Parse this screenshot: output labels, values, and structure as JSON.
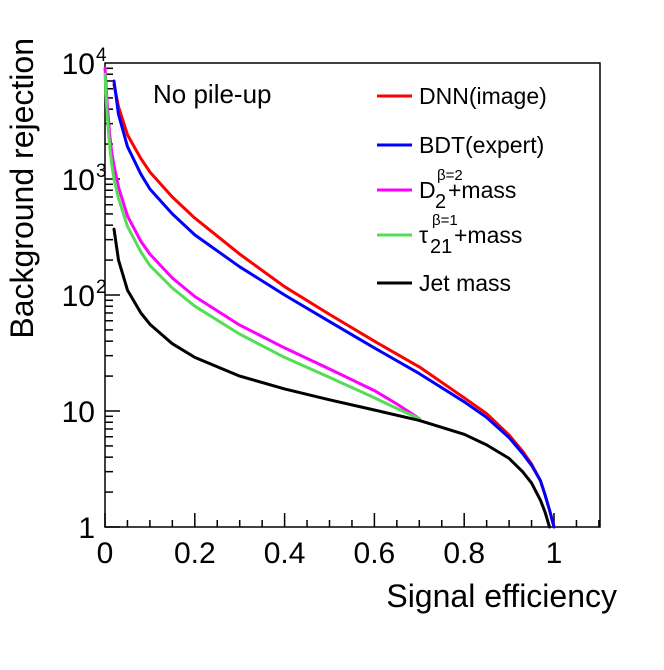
{
  "chart_data": {
    "type": "line",
    "title": "",
    "annotation": "No pile-up",
    "xlabel": "Signal efficiency",
    "ylabel": "Background rejection",
    "xlim": [
      0,
      1.1
    ],
    "ylim": [
      1,
      10000
    ],
    "yscale": "log",
    "x_ticks": [
      {
        "value": 0,
        "label": "0"
      },
      {
        "value": 0.2,
        "label": "0.2"
      },
      {
        "value": 0.4,
        "label": "0.4"
      },
      {
        "value": 0.6,
        "label": "0.6"
      },
      {
        "value": 0.8,
        "label": "0.8"
      },
      {
        "value": 1,
        "label": "1"
      }
    ],
    "y_ticks": [
      {
        "value": 1,
        "label": "1",
        "sup": ""
      },
      {
        "value": 10,
        "label": "10",
        "sup": ""
      },
      {
        "value": 100,
        "label": "10",
        "sup": "2"
      },
      {
        "value": 1000,
        "label": "10",
        "sup": "3"
      },
      {
        "value": 10000,
        "label": "10",
        "sup": "4"
      }
    ],
    "series": [
      {
        "name": "DNN(image)",
        "legend": {
          "base": "DNN(image)",
          "sub": "",
          "sup": "",
          "suffix": ""
        },
        "color": "#ff0000",
        "x": [
          0.02,
          0.03,
          0.05,
          0.08,
          0.1,
          0.15,
          0.2,
          0.3,
          0.4,
          0.5,
          0.6,
          0.7,
          0.8,
          0.85,
          0.9,
          0.93,
          0.95,
          0.97,
          0.98,
          0.99,
          1.0
        ],
        "y": [
          6500,
          4200,
          2400,
          1500,
          1150,
          700,
          460,
          225,
          118,
          68,
          40,
          24,
          13,
          9.5,
          6.2,
          4.5,
          3.5,
          2.5,
          1.9,
          1.4,
          1.0
        ]
      },
      {
        "name": "BDT(expert)",
        "legend": {
          "base": "BDT(expert)",
          "sub": "",
          "sup": "",
          "suffix": ""
        },
        "color": "#0000ff",
        "x": [
          0.02,
          0.03,
          0.05,
          0.08,
          0.1,
          0.15,
          0.2,
          0.3,
          0.4,
          0.5,
          0.6,
          0.7,
          0.8,
          0.85,
          0.9,
          0.93,
          0.95,
          0.97,
          0.98,
          0.99,
          1.0
        ],
        "y": [
          7000,
          3600,
          1900,
          1100,
          820,
          500,
          330,
          175,
          100,
          59,
          35,
          21,
          12,
          8.8,
          5.9,
          4.3,
          3.4,
          2.5,
          1.9,
          1.4,
          1.0
        ]
      },
      {
        "name": "D2 beta=2 + mass",
        "legend": {
          "base": "D",
          "sub": "2",
          "sup": "β=2",
          "suffix": "+mass"
        },
        "color": "#ff00ff",
        "x": [
          0.0,
          0.005,
          0.01,
          0.015,
          0.02,
          0.03,
          0.05,
          0.08,
          0.1,
          0.15,
          0.2,
          0.3,
          0.4,
          0.5,
          0.6,
          0.65,
          0.7
        ],
        "y": [
          9000,
          4500,
          2500,
          1700,
          1300,
          850,
          480,
          290,
          225,
          140,
          97,
          55,
          35,
          23,
          15,
          11.5,
          8.6
        ]
      },
      {
        "name": "tau21 beta=1 + mass",
        "legend": {
          "base": "τ",
          "sub": "21",
          "sup": "β=1",
          "suffix": "+mass"
        },
        "color": "#55dd55",
        "x": [
          0.0,
          0.005,
          0.01,
          0.015,
          0.02,
          0.03,
          0.05,
          0.08,
          0.1,
          0.15,
          0.2,
          0.3,
          0.4,
          0.5,
          0.6,
          0.65,
          0.7
        ],
        "y": [
          8000,
          3500,
          2000,
          1350,
          1000,
          680,
          390,
          235,
          180,
          115,
          80,
          46,
          29,
          19.5,
          13,
          10.5,
          8.6
        ]
      },
      {
        "name": "Jet mass",
        "legend": {
          "base": "Jet mass",
          "sub": "",
          "sup": "",
          "suffix": ""
        },
        "color": "#000000",
        "x": [
          0.02,
          0.03,
          0.05,
          0.08,
          0.1,
          0.15,
          0.2,
          0.3,
          0.4,
          0.5,
          0.6,
          0.7,
          0.8,
          0.85,
          0.9,
          0.93,
          0.95,
          0.97,
          0.98,
          0.99
        ],
        "y": [
          370,
          200,
          110,
          70,
          56,
          38,
          29,
          20,
          15.5,
          12.5,
          10.2,
          8.3,
          6.3,
          5.1,
          3.9,
          3.0,
          2.4,
          1.7,
          1.35,
          1.0
        ]
      }
    ]
  }
}
